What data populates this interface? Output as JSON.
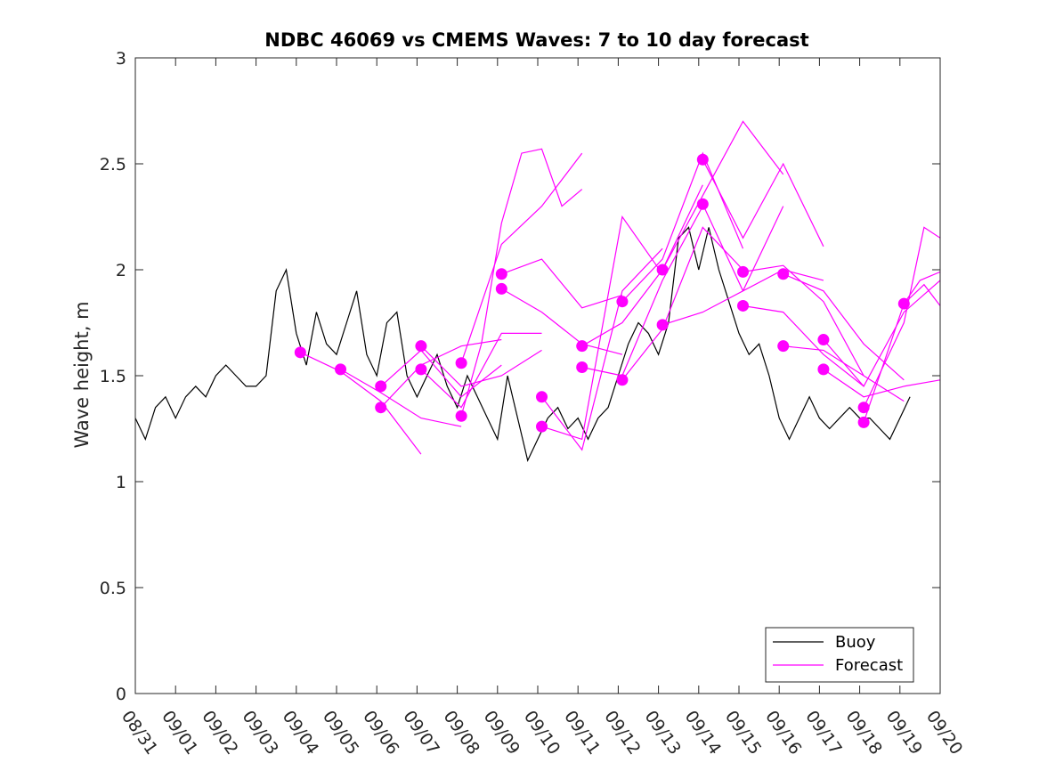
{
  "chart_data": {
    "type": "line",
    "title": "NDBC 46069 vs CMEMS Waves: 7 to 10 day forecast",
    "xlabel": "",
    "ylabel": "Wave height, m",
    "xlim": [
      0,
      20
    ],
    "ylim": [
      0,
      3
    ],
    "yticks": [
      0,
      0.5,
      1,
      1.5,
      2,
      2.5,
      3
    ],
    "ytick_labels": [
      "0",
      "0.5",
      "1",
      "1.5",
      "2",
      "2.5",
      "3"
    ],
    "xtick_labels": [
      "08/31",
      "09/01",
      "09/02",
      "09/03",
      "09/04",
      "09/05",
      "09/06",
      "09/07",
      "09/08",
      "09/09",
      "09/10",
      "09/11",
      "09/12",
      "09/13",
      "09/14",
      "09/15",
      "09/16",
      "09/17",
      "09/18",
      "09/19",
      "09/20"
    ],
    "legend": {
      "position": "bottom-right",
      "entries": [
        "Buoy",
        "Forecast"
      ]
    },
    "colors": {
      "buoy": "#000000",
      "forecast": "#ff00ff"
    },
    "buoy": {
      "name": "Buoy",
      "x": [
        0,
        0.25,
        0.5,
        0.75,
        1,
        1.25,
        1.5,
        1.75,
        2,
        2.25,
        2.5,
        2.75,
        3,
        3.25,
        3.5,
        3.75,
        4,
        4.25,
        4.5,
        4.75,
        5,
        5.25,
        5.5,
        5.75,
        6,
        6.25,
        6.5,
        6.75,
        7,
        7.25,
        7.5,
        7.75,
        8,
        8.25,
        8.5,
        8.75,
        9,
        9.25,
        9.5,
        9.75,
        10,
        10.25,
        10.5,
        10.75,
        11,
        11.25,
        11.5,
        11.75,
        12,
        12.25,
        12.5,
        12.75,
        13,
        13.25,
        13.5,
        13.75,
        14,
        14.25,
        14.5,
        14.75,
        15,
        15.25,
        15.5,
        15.75,
        16,
        16.25,
        16.5,
        16.75,
        17,
        17.25,
        17.5,
        17.75,
        18,
        18.25,
        18.5,
        18.75,
        19,
        19.25
      ],
      "y": [
        1.3,
        1.2,
        1.35,
        1.4,
        1.3,
        1.4,
        1.45,
        1.4,
        1.5,
        1.55,
        1.5,
        1.45,
        1.45,
        1.5,
        1.9,
        2.0,
        1.7,
        1.55,
        1.8,
        1.65,
        1.6,
        1.75,
        1.9,
        1.6,
        1.5,
        1.75,
        1.8,
        1.5,
        1.4,
        1.5,
        1.6,
        1.45,
        1.35,
        1.5,
        1.4,
        1.3,
        1.2,
        1.5,
        1.3,
        1.1,
        1.2,
        1.3,
        1.35,
        1.25,
        1.3,
        1.2,
        1.3,
        1.35,
        1.5,
        1.65,
        1.75,
        1.7,
        1.6,
        1.75,
        2.15,
        2.2,
        2.0,
        2.2,
        2.0,
        1.85,
        1.7,
        1.6,
        1.65,
        1.5,
        1.3,
        1.2,
        1.3,
        1.4,
        1.3,
        1.25,
        1.3,
        1.35,
        1.3,
        1.3,
        1.25,
        1.2,
        1.3,
        1.4
      ]
    },
    "forecasts": [
      {
        "name": "Forecast",
        "x": [
          4.1,
          5.1,
          6.1,
          7.1
        ],
        "y": [
          1.61,
          1.52,
          1.38,
          1.13
        ]
      },
      {
        "name": "Forecast",
        "x": [
          5.1,
          6.1,
          7.1,
          8.1
        ],
        "y": [
          1.53,
          1.42,
          1.3,
          1.26
        ]
      },
      {
        "name": "Forecast",
        "x": [
          6.1,
          7.1,
          8.1,
          9.1
        ],
        "y": [
          1.35,
          1.55,
          1.64,
          1.67
        ]
      },
      {
        "name": "Forecast",
        "x": [
          6.1,
          7.1,
          8.1,
          9.1
        ],
        "y": [
          1.45,
          1.62,
          1.4,
          1.55
        ]
      },
      {
        "name": "Forecast",
        "x": [
          7.1,
          8.1,
          9.1,
          10.1
        ],
        "y": [
          1.64,
          1.45,
          1.5,
          1.62
        ]
      },
      {
        "name": "Forecast",
        "x": [
          7.1,
          8.1,
          9.1,
          10.1
        ],
        "y": [
          1.53,
          1.35,
          1.7,
          1.7
        ]
      },
      {
        "name": "Forecast",
        "x": [
          8.1,
          8.6,
          9.1,
          9.6,
          10.1,
          10.6,
          11.1
        ],
        "y": [
          1.31,
          1.65,
          2.22,
          2.55,
          2.57,
          2.3,
          2.38
        ]
      },
      {
        "name": "Forecast",
        "x": [
          8.1,
          9.1,
          10.1,
          11.1
        ],
        "y": [
          1.56,
          2.12,
          2.3,
          2.55
        ]
      },
      {
        "name": "Forecast",
        "x": [
          9.1,
          10.1,
          11.1,
          12.1
        ],
        "y": [
          1.98,
          2.05,
          1.82,
          1.88
        ]
      },
      {
        "name": "Forecast",
        "x": [
          9.1,
          10.1,
          11.1,
          12.1
        ],
        "y": [
          1.91,
          1.8,
          1.65,
          1.6
        ]
      },
      {
        "name": "Forecast",
        "x": [
          10.1,
          11.1,
          12.1,
          13.1
        ],
        "y": [
          1.4,
          1.15,
          1.9,
          2.1
        ]
      },
      {
        "name": "Forecast",
        "x": [
          10.1,
          11.1,
          12.1,
          13.1
        ],
        "y": [
          1.26,
          1.2,
          2.25,
          1.98
        ]
      },
      {
        "name": "Forecast",
        "x": [
          11.1,
          12.1,
          13.1,
          14.1
        ],
        "y": [
          1.64,
          1.75,
          2.0,
          2.4
        ]
      },
      {
        "name": "Forecast",
        "x": [
          11.1,
          12.1,
          13.1,
          14.1
        ],
        "y": [
          1.54,
          1.5,
          1.95,
          2.3
        ]
      },
      {
        "name": "Forecast",
        "x": [
          12.1,
          13.1,
          14.1,
          15.1
        ],
        "y": [
          1.85,
          2.05,
          2.55,
          2.1
        ]
      },
      {
        "name": "Forecast",
        "x": [
          12.1,
          13.1,
          14.1,
          15.1
        ],
        "y": [
          1.48,
          1.72,
          2.2,
          2.0
        ]
      },
      {
        "name": "Forecast",
        "x": [
          13.1,
          14.1,
          15.1,
          16.1
        ],
        "y": [
          2.0,
          2.35,
          2.7,
          2.45
        ]
      },
      {
        "name": "Forecast",
        "x": [
          13.1,
          14.1,
          15.1,
          16.1
        ],
        "y": [
          1.74,
          1.8,
          1.9,
          2.3
        ]
      },
      {
        "name": "Forecast",
        "x": [
          14.1,
          15.1,
          16.1,
          17.1
        ],
        "y": [
          2.52,
          2.15,
          2.5,
          2.11
        ]
      },
      {
        "name": "Forecast",
        "x": [
          14.1,
          15.1,
          16.1,
          17.1
        ],
        "y": [
          2.31,
          1.9,
          2.0,
          1.95
        ]
      },
      {
        "name": "Forecast",
        "x": [
          15.1,
          16.1,
          17.1,
          18.1
        ],
        "y": [
          1.99,
          2.02,
          1.85,
          1.5
        ]
      },
      {
        "name": "Forecast",
        "x": [
          15.1,
          16.1,
          17.1,
          18.1
        ],
        "y": [
          1.83,
          1.8,
          1.6,
          1.45
        ]
      },
      {
        "name": "Forecast",
        "x": [
          16.1,
          17.1,
          18.1,
          19.1
        ],
        "y": [
          1.98,
          1.9,
          1.65,
          1.48
        ]
      },
      {
        "name": "Forecast",
        "x": [
          16.1,
          17.1,
          18.1,
          19.1
        ],
        "y": [
          1.64,
          1.62,
          1.5,
          1.38
        ]
      },
      {
        "name": "Forecast",
        "x": [
          17.1,
          18.1,
          19.1,
          20.0
        ],
        "y": [
          1.67,
          1.45,
          1.8,
          1.95
        ]
      },
      {
        "name": "Forecast",
        "x": [
          17.1,
          18.1,
          19.1,
          20.0
        ],
        "y": [
          1.53,
          1.4,
          1.45,
          1.48
        ]
      },
      {
        "name": "Forecast",
        "x": [
          18.1,
          19.1,
          19.6,
          20.0
        ],
        "y": [
          1.35,
          1.75,
          2.2,
          2.15
        ]
      },
      {
        "name": "Forecast",
        "x": [
          18.1,
          19.1,
          19.6,
          20.0
        ],
        "y": [
          1.28,
          1.84,
          1.93,
          1.83
        ]
      },
      {
        "name": "Forecast",
        "x": [
          19.1,
          19.5,
          20.0
        ],
        "y": [
          1.84,
          1.95,
          1.99
        ]
      }
    ]
  }
}
